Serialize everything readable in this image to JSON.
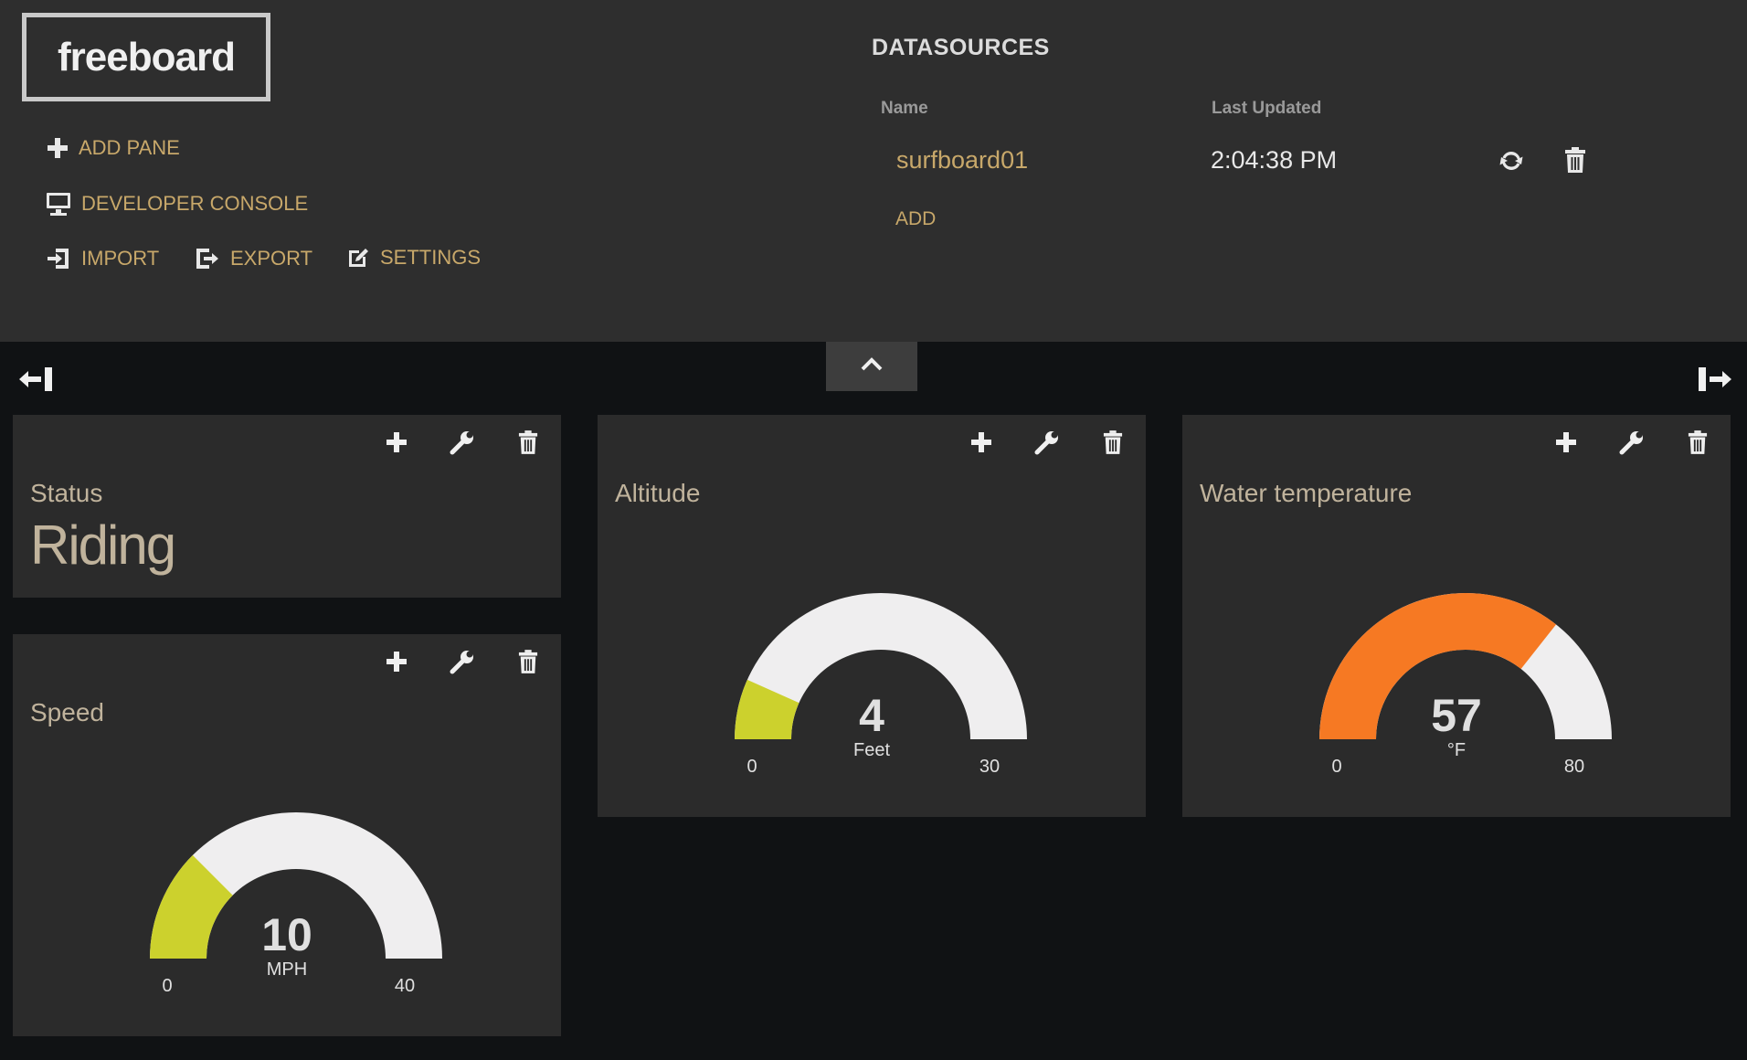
{
  "app": {
    "logo": "freeboard"
  },
  "menu": {
    "add_pane": "ADD PANE",
    "developer_console": "DEVELOPER CONSOLE",
    "import": "IMPORT",
    "export": "EXPORT",
    "settings": "SETTINGS"
  },
  "datasources": {
    "title": "DATASOURCES",
    "columns": [
      "Name",
      "Last Updated"
    ],
    "rows": [
      {
        "name": "surfboard01",
        "last_updated": "2:04:38 PM"
      }
    ],
    "add_label": "ADD"
  },
  "colors": {
    "accent": "#c8a86a",
    "gauge_track": "#efeeef",
    "gauge_green": "#ccd12d",
    "gauge_orange": "#f67923"
  },
  "icons": [
    "plus-icon",
    "monitor-icon",
    "import-icon",
    "export-icon",
    "edit-icon",
    "refresh-icon",
    "trash-icon",
    "wrench-icon",
    "chevron-up-icon",
    "collapse-left-icon",
    "expand-right-icon"
  ],
  "panes": {
    "status": {
      "title": "Status",
      "value": "Riding"
    },
    "speed": {
      "title": "Speed",
      "value": 10,
      "value_text": "10",
      "unit": "MPH",
      "min": 0,
      "max": 40,
      "min_text": "0",
      "max_text": "40",
      "color": "#ccd12d"
    },
    "altitude": {
      "title": "Altitude",
      "value": 4,
      "value_text": "4",
      "unit": "Feet",
      "min": 0,
      "max": 30,
      "min_text": "0",
      "max_text": "30",
      "color": "#ccd12d"
    },
    "water": {
      "title": "Water temperature",
      "value": 57,
      "value_text": "57",
      "unit": "°F",
      "min": 0,
      "max": 80,
      "min_text": "0",
      "max_text": "80",
      "color": "#f67923"
    }
  }
}
